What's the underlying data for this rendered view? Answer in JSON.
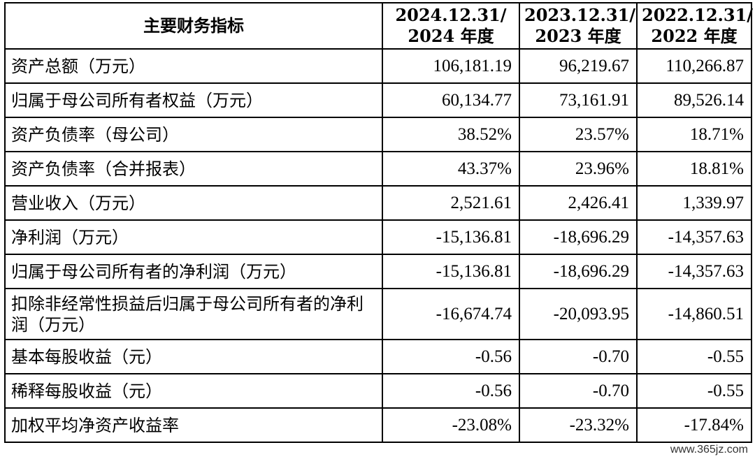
{
  "table": {
    "header": {
      "indicator": "主要财务指标",
      "columns": [
        {
          "line1": "2024.12.31/",
          "line2": "2024 年度"
        },
        {
          "line1": "2023.12.31/",
          "line2": "2023 年度"
        },
        {
          "line1": "2022.12.31/",
          "line2": "2022 年度"
        }
      ]
    },
    "rows": [
      {
        "label": "资产总额（万元）",
        "values": [
          "106,181.19",
          "96,219.67",
          "110,266.87"
        ]
      },
      {
        "label": "归属于母公司所有者权益（万元）",
        "values": [
          "60,134.77",
          "73,161.91",
          "89,526.14"
        ]
      },
      {
        "label": "资产负债率（母公司）",
        "values": [
          "38.52%",
          "23.57%",
          "18.71%"
        ]
      },
      {
        "label": "资产负债率（合并报表）",
        "values": [
          "43.37%",
          "23.96%",
          "18.81%"
        ]
      },
      {
        "label": "营业收入（万元）",
        "values": [
          "2,521.61",
          "2,426.41",
          "1,339.97"
        ]
      },
      {
        "label": "净利润（万元）",
        "values": [
          "-15,136.81",
          "-18,696.29",
          "-14,357.63"
        ]
      },
      {
        "label": "归属于母公司所有者的净利润（万元）",
        "values": [
          "-15,136.81",
          "-18,696.29",
          "-14,357.63"
        ]
      },
      {
        "label": "扣除非经常性损益后归属于母公司所有者的净利润（万元）",
        "values": [
          "-16,674.74",
          "-20,093.95",
          "-14,860.51"
        ]
      },
      {
        "label": "基本每股收益（元）",
        "values": [
          "-0.56",
          "-0.70",
          "-0.55"
        ]
      },
      {
        "label": "稀释每股收益（元）",
        "values": [
          "-0.56",
          "-0.70",
          "-0.55"
        ]
      },
      {
        "label": "加权平均净资产收益率",
        "values": [
          "-23.08%",
          "-23.32%",
          "-17.84%"
        ]
      }
    ]
  },
  "watermark": "www.365jz.com"
}
